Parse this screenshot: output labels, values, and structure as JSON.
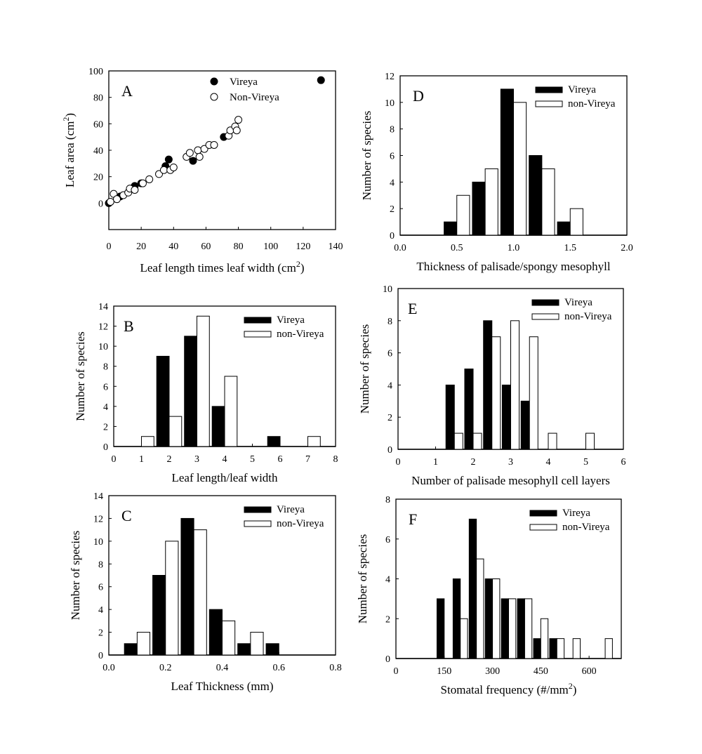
{
  "chart_data": [
    {
      "panel": "A",
      "type": "scatter",
      "xlabel": "Leaf length times leaf width (cm2)",
      "ylabel": "Leaf area (cm2)",
      "xlim": [
        0,
        140
      ],
      "ylim": [
        -20,
        100
      ],
      "xticks": [
        0,
        20,
        40,
        60,
        80,
        100,
        120,
        140
      ],
      "yticks": [
        0,
        20,
        40,
        60,
        80,
        100
      ],
      "legend": "top-center",
      "series": [
        {
          "name": "Vireya",
          "marker": "filled",
          "points": [
            [
              0,
              0
            ],
            [
              7,
              5
            ],
            [
              16,
              13
            ],
            [
              20,
              15
            ],
            [
              35,
              28
            ],
            [
              37,
              33
            ],
            [
              52,
              32
            ],
            [
              71,
              50
            ],
            [
              131,
              93
            ]
          ]
        },
        {
          "name": "Non-Vireya",
          "marker": "open",
          "points": [
            [
              1,
              1
            ],
            [
              3,
              7
            ],
            [
              5,
              3
            ],
            [
              9,
              6
            ],
            [
              12,
              8
            ],
            [
              13,
              11
            ],
            [
              16,
              10
            ],
            [
              21,
              15
            ],
            [
              25,
              18
            ],
            [
              31,
              22
            ],
            [
              34,
              25
            ],
            [
              38,
              25
            ],
            [
              40,
              27
            ],
            [
              48,
              35
            ],
            [
              50,
              38
            ],
            [
              55,
              40
            ],
            [
              56,
              35
            ],
            [
              59,
              41
            ],
            [
              62,
              44
            ],
            [
              65,
              44
            ],
            [
              74,
              51
            ],
            [
              75,
              55
            ],
            [
              78,
              58
            ],
            [
              79,
              55
            ],
            [
              80,
              63
            ]
          ]
        }
      ]
    },
    {
      "panel": "D",
      "type": "bar",
      "xlabel": "Thickness of palisade/spongy mesophyll",
      "ylabel": "Number of species",
      "xlim": [
        0,
        2
      ],
      "ylim": [
        0,
        12
      ],
      "xticks": [
        "0.0",
        "0.5",
        "1.0",
        "1.5",
        "2.0"
      ],
      "yticks": [
        0,
        2,
        4,
        6,
        8,
        10,
        12
      ],
      "binwidth": 0.25,
      "legend": "top-right",
      "x": [
        0.5,
        0.75,
        1.0,
        1.25,
        1.5
      ],
      "series": [
        {
          "name": "Vireya",
          "values": [
            1,
            4,
            11,
            6,
            1
          ]
        },
        {
          "name": "non-Vireya",
          "values": [
            3,
            5,
            10,
            5,
            2
          ]
        }
      ]
    },
    {
      "panel": "B",
      "type": "bar",
      "xlabel": "Leaf length/leaf width",
      "ylabel": "Number of species",
      "xlim": [
        0,
        8
      ],
      "ylim": [
        0,
        14
      ],
      "xticks": [
        "0",
        "1",
        "2",
        "3",
        "4",
        "5",
        "6",
        "7",
        "8"
      ],
      "yticks": [
        0,
        2,
        4,
        6,
        8,
        10,
        12,
        14
      ],
      "binwidth": 1,
      "legend": "top-right",
      "x": [
        1,
        2,
        3,
        4,
        5,
        6,
        7
      ],
      "series": [
        {
          "name": "Vireya",
          "values": [
            0,
            9,
            11,
            4,
            0,
            1,
            0
          ]
        },
        {
          "name": "non-Vireya",
          "values": [
            1,
            3,
            13,
            7,
            0,
            0,
            1
          ]
        }
      ]
    },
    {
      "panel": "E",
      "type": "bar",
      "xlabel": "Number of palisade mesophyll cell layers",
      "ylabel": "Number of species",
      "xlim": [
        0,
        6
      ],
      "ylim": [
        0,
        10
      ],
      "xticks": [
        "0",
        "1",
        "2",
        "3",
        "4",
        "5",
        "6"
      ],
      "yticks": [
        0,
        2,
        4,
        6,
        8,
        10
      ],
      "binwidth": 0.5,
      "legend": "top-right",
      "x": [
        1.5,
        2,
        2.5,
        3,
        3.5,
        4,
        4.5,
        5
      ],
      "series": [
        {
          "name": "Vireya",
          "values": [
            4,
            5,
            8,
            4,
            3,
            0,
            0,
            0
          ]
        },
        {
          "name": "non-Vireya",
          "values": [
            1,
            1,
            7,
            8,
            7,
            1,
            0,
            1
          ]
        }
      ]
    },
    {
      "panel": "C",
      "type": "bar",
      "xlabel": "Leaf Thickness (mm)",
      "ylabel": "Number of species",
      "xlim": [
        0,
        0.8
      ],
      "ylim": [
        0,
        14
      ],
      "xticks": [
        "0.0",
        "0.2",
        "0.4",
        "0.6",
        "0.8"
      ],
      "yticks": [
        0,
        2,
        4,
        6,
        8,
        10,
        12,
        14
      ],
      "binwidth": 0.1,
      "legend": "top-right",
      "x": [
        0.1,
        0.2,
        0.3,
        0.4,
        0.5,
        0.6
      ],
      "series": [
        {
          "name": "Vireya",
          "values": [
            1,
            7,
            12,
            4,
            1,
            1
          ]
        },
        {
          "name": "non-Vireya",
          "values": [
            2,
            10,
            11,
            3,
            2,
            0
          ]
        }
      ]
    },
    {
      "panel": "F",
      "type": "bar",
      "xlabel": "Stomatal frequency (#/mm2)",
      "ylabel": "Number of species",
      "xlim": [
        0,
        700
      ],
      "ylim": [
        0,
        8
      ],
      "xticks": [
        "0",
        "150",
        "300",
        "450",
        "600"
      ],
      "yticks": [
        0,
        2,
        4,
        6,
        8
      ],
      "binwidth": 50,
      "legend": "top-right",
      "x": [
        150,
        200,
        250,
        300,
        350,
        400,
        450,
        500,
        550,
        600,
        650
      ],
      "series": [
        {
          "name": "Vireya",
          "values": [
            3,
            4,
            7,
            4,
            3,
            3,
            1,
            1,
            0,
            0,
            0
          ]
        },
        {
          "name": "non-Vireya",
          "values": [
            0,
            2,
            5,
            4,
            3,
            3,
            2,
            1,
            1,
            0,
            1
          ]
        }
      ]
    }
  ]
}
